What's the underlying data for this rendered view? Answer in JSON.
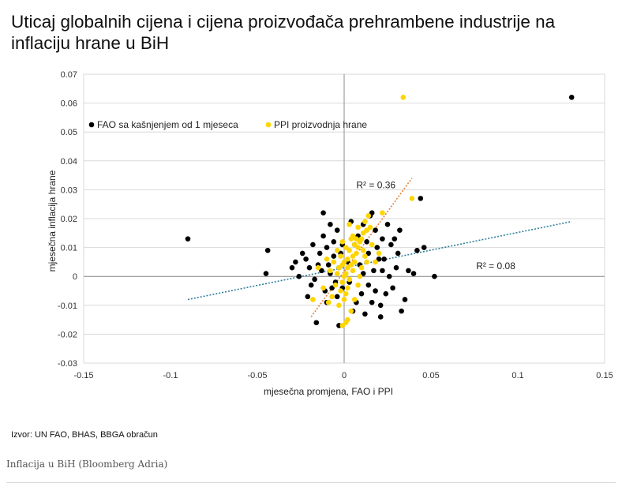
{
  "chart_data": {
    "type": "scatter",
    "title": "Uticaj globalnih cijena i cijena proizvođača prehrambene industrije na inflaciju hrane u BiH",
    "xlabel": "mjesečna promjena, FAO i PPI",
    "ylabel": "mjesečna inflacija hrane",
    "xlim": [
      -0.15,
      0.15
    ],
    "ylim": [
      -0.03,
      0.07
    ],
    "x_ticks": [
      "-0.15",
      "-0.1",
      "-0.05",
      "0",
      "0.05",
      "0.1",
      "0.15"
    ],
    "y_ticks": [
      "-0.03",
      "-0.02",
      "-0.01",
      "0",
      "0.01",
      "0.02",
      "0.03",
      "0.04",
      "0.05",
      "0.06",
      "0.07"
    ],
    "grid": "horizontal",
    "legend_position": "top-left",
    "series": [
      {
        "name": "FAO sa kašnjenjem od 1 mjeseca",
        "color": "#000000",
        "points": [
          [
            -0.09,
            0.013
          ],
          [
            0.131,
            0.062
          ],
          [
            -0.044,
            0.009
          ],
          [
            -0.045,
            0.001
          ],
          [
            -0.03,
            0.003
          ],
          [
            -0.028,
            0.005
          ],
          [
            -0.026,
            0.0
          ],
          [
            -0.024,
            0.008
          ],
          [
            -0.022,
            0.006
          ],
          [
            -0.021,
            -0.007
          ],
          [
            -0.02,
            0.003
          ],
          [
            -0.019,
            -0.003
          ],
          [
            -0.018,
            0.011
          ],
          [
            -0.017,
            -0.001
          ],
          [
            -0.016,
            -0.016
          ],
          [
            -0.015,
            0.004
          ],
          [
            -0.014,
            0.008
          ],
          [
            -0.013,
            0.002
          ],
          [
            -0.012,
            0.022
          ],
          [
            -0.012,
            0.014
          ],
          [
            -0.011,
            -0.005
          ],
          [
            -0.01,
            0.01
          ],
          [
            -0.01,
            -0.009
          ],
          [
            -0.009,
            0.004
          ],
          [
            -0.008,
            0.018
          ],
          [
            -0.008,
            0.001
          ],
          [
            -0.007,
            -0.004
          ],
          [
            -0.006,
            0.012
          ],
          [
            -0.006,
            0.007
          ],
          [
            -0.005,
            -0.002
          ],
          [
            -0.004,
            0.016
          ],
          [
            -0.004,
            -0.007
          ],
          [
            -0.003,
            0.003
          ],
          [
            -0.003,
            -0.017
          ],
          [
            -0.002,
            0.008
          ],
          [
            -0.001,
            0.011
          ],
          [
            -0.001,
            -0.004
          ],
          [
            0.002,
            0.005
          ],
          [
            0.003,
            -0.002
          ],
          [
            0.004,
            0.019
          ],
          [
            0.005,
            -0.012
          ],
          [
            0.006,
            0.011
          ],
          [
            0.007,
            -0.009
          ],
          [
            0.008,
            0.014
          ],
          [
            0.009,
            0.004
          ],
          [
            0.01,
            -0.006
          ],
          [
            0.011,
            0.018
          ],
          [
            0.011,
            0.001
          ],
          [
            0.012,
            -0.013
          ],
          [
            0.013,
            0.012
          ],
          [
            0.014,
            -0.003
          ],
          [
            0.014,
            0.008
          ],
          [
            0.015,
            0.021
          ],
          [
            0.016,
            -0.009
          ],
          [
            0.017,
            0.002
          ],
          [
            0.018,
            0.016
          ],
          [
            0.018,
            -0.005
          ],
          [
            0.019,
            0.01
          ],
          [
            0.02,
            0.006
          ],
          [
            0.021,
            -0.01
          ],
          [
            0.022,
            0.013
          ],
          [
            0.022,
            0.002
          ],
          [
            0.023,
            0.006
          ],
          [
            0.024,
            -0.006
          ],
          [
            0.025,
            0.018
          ],
          [
            0.026,
            0.0
          ],
          [
            0.027,
            0.011
          ],
          [
            0.028,
            -0.004
          ],
          [
            0.029,
            0.013
          ],
          [
            0.03,
            0.003
          ],
          [
            0.031,
            0.008
          ],
          [
            0.032,
            0.016
          ],
          [
            0.033,
            -0.012
          ],
          [
            0.035,
            -0.008
          ],
          [
            0.037,
            0.002
          ],
          [
            0.04,
            0.001
          ],
          [
            0.042,
            0.009
          ],
          [
            0.044,
            0.027
          ],
          [
            0.046,
            0.01
          ],
          [
            0.052,
            0.0
          ],
          [
            0.016,
            0.022
          ],
          [
            0.021,
            -0.014
          ]
        ]
      },
      {
        "name": "PPI proizvodnja hrane",
        "color": "#FFD500",
        "points": [
          [
            0.034,
            0.062
          ],
          [
            0.039,
            0.027
          ],
          [
            0.022,
            0.022
          ],
          [
            0.014,
            0.021
          ],
          [
            0.012,
            0.019
          ],
          [
            0.013,
            0.016
          ],
          [
            0.011,
            0.015
          ],
          [
            0.01,
            0.013
          ],
          [
            0.009,
            0.012
          ],
          [
            0.008,
            0.017
          ],
          [
            0.008,
            0.01
          ],
          [
            0.007,
            0.008
          ],
          [
            0.006,
            0.011
          ],
          [
            0.006,
            0.005
          ],
          [
            0.005,
            0.007
          ],
          [
            0.005,
            0.002
          ],
          [
            0.004,
            0.013
          ],
          [
            0.004,
            0.004
          ],
          [
            0.003,
            0.009
          ],
          [
            0.003,
            -0.001
          ],
          [
            0.002,
            0.006
          ],
          [
            0.002,
            0.003
          ],
          [
            0.002,
            -0.004
          ],
          [
            0.001,
            0.01
          ],
          [
            0.001,
            0.001
          ],
          [
            0.001,
            -0.006
          ],
          [
            0.0,
            0.005
          ],
          [
            0.0,
            0.0
          ],
          [
            0.0,
            -0.008
          ],
          [
            -0.001,
            0.012
          ],
          [
            -0.001,
            0.004
          ],
          [
            -0.001,
            -0.002
          ],
          [
            -0.002,
            0.007
          ],
          [
            -0.002,
            -0.005
          ],
          [
            -0.003,
            0.003
          ],
          [
            -0.003,
            -0.01
          ],
          [
            -0.004,
            0.009
          ],
          [
            -0.004,
            0.001
          ],
          [
            -0.005,
            -0.003
          ],
          [
            -0.006,
            0.005
          ],
          [
            -0.007,
            -0.007
          ],
          [
            -0.008,
            0.002
          ],
          [
            -0.009,
            -0.009
          ],
          [
            -0.01,
            0.006
          ],
          [
            -0.012,
            -0.004
          ],
          [
            -0.015,
            0.003
          ],
          [
            -0.018,
            -0.008
          ],
          [
            0.015,
            0.017
          ],
          [
            0.016,
            0.011
          ],
          [
            0.018,
            0.005
          ],
          [
            0.02,
            0.008
          ],
          [
            0.012,
            0.007
          ],
          [
            0.01,
            0.003
          ],
          [
            0.009,
            0.0
          ],
          [
            0.008,
            -0.003
          ],
          [
            0.006,
            -0.008
          ],
          [
            0.004,
            -0.012
          ],
          [
            0.002,
            -0.015
          ],
          [
            0.001,
            -0.016
          ],
          [
            -0.001,
            -0.017
          ],
          [
            0.003,
            0.018
          ],
          [
            0.005,
            0.014
          ],
          [
            0.007,
            0.013
          ],
          [
            0.011,
            0.009
          ],
          [
            0.013,
            0.005
          ]
        ]
      }
    ],
    "trendlines": [
      {
        "series": "FAO sa kašnjenjem od 1 mjeseca",
        "label": "R² = 0.08",
        "color": "#2E7D9A",
        "from": [
          -0.09,
          -0.008
        ],
        "to": [
          0.131,
          0.019
        ]
      },
      {
        "series": "PPI proizvodnja hrane",
        "label": "R² = 0.36",
        "color": "#E8803A",
        "from": [
          -0.019,
          -0.014
        ],
        "to": [
          0.039,
          0.034
        ]
      }
    ]
  },
  "source": "Izvor: UN FAO, BHAS, BBGA obračun",
  "caption": "Inflacija u BiH (Bloomberg Adria)"
}
